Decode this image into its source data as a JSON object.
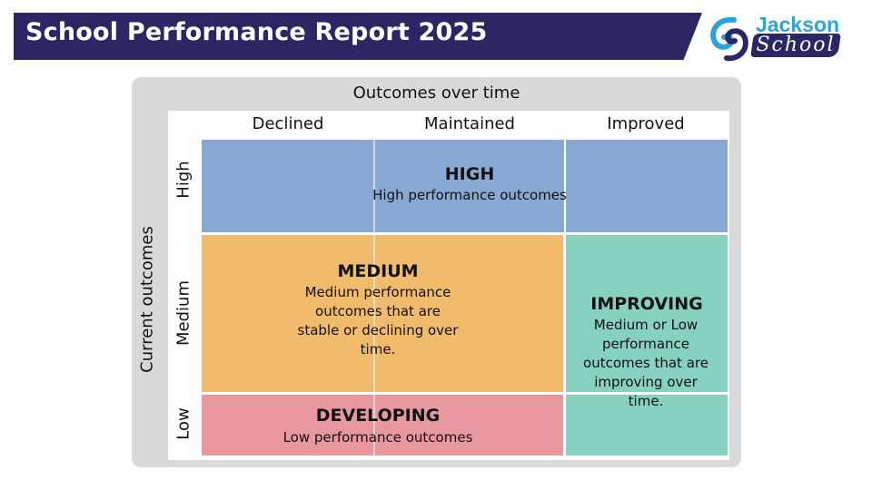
{
  "header": {
    "title": "School Performance Report 2025",
    "bar_color": "#2b2764"
  },
  "logo": {
    "line1": "Jackson",
    "line2": "School",
    "icon": "swirl-logo-icon",
    "colors": {
      "primary": "#2aa3dc",
      "secondary": "#2b2764"
    }
  },
  "matrix": {
    "top_axis_title": "Outcomes over time",
    "side_axis_title": "Current outcomes",
    "columns": [
      "Declined",
      "Maintained",
      "Improved"
    ],
    "rows": [
      "High",
      "Medium",
      "Low"
    ],
    "zones": {
      "high": {
        "title": "HIGH",
        "description": "High performance outcomes",
        "color": "#87a9d3"
      },
      "medium": {
        "title": "MEDIUM",
        "description": "Medium performance outcomes that are stable or declining over time.",
        "color": "#f0bb6b"
      },
      "improving": {
        "title": "IMPROVING",
        "description": "Medium or Low performance outcomes that are improving over time.",
        "color": "#86d1bf"
      },
      "developing": {
        "title": "DEVELOPING",
        "description": "Low performance outcomes",
        "color": "#e8979f"
      }
    }
  }
}
